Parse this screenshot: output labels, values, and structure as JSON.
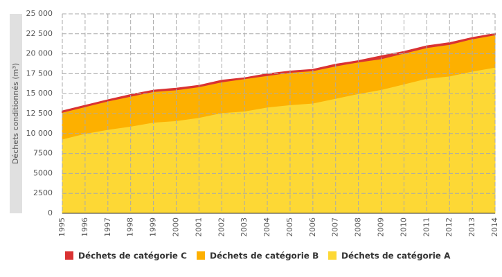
{
  "chart_data": {
    "type": "stacked_area",
    "y_axis_label": "Déchets conditionnés (m³)",
    "categories": [
      "1995",
      "1996",
      "1997",
      "1998",
      "1999",
      "2000",
      "2001",
      "2002",
      "2003",
      "2004",
      "2005",
      "2006",
      "2007",
      "2008",
      "2009",
      "2010",
      "2011",
      "2012",
      "2013",
      "2014"
    ],
    "series": [
      {
        "name": "Déchets de catégorie A",
        "color": "#fdd835",
        "values": [
          9300,
          10000,
          10500,
          10900,
          11400,
          11600,
          12000,
          12600,
          12800,
          13300,
          13600,
          13800,
          14400,
          15000,
          15500,
          16200,
          16900,
          17200,
          17800,
          18300
        ]
      },
      {
        "name": "Déchets de catégorie B",
        "color": "#fdb000",
        "values": [
          3400,
          3400,
          3600,
          3800,
          3900,
          3900,
          3900,
          3900,
          4100,
          4000,
          4100,
          4100,
          4100,
          4000,
          3900,
          3900,
          3900,
          4000,
          4100,
          4100
        ]
      },
      {
        "name": "Déchets de catégorie C",
        "color": "#d93232",
        "values": [
          100,
          100,
          100,
          150,
          100,
          150,
          100,
          150,
          50,
          150,
          100,
          100,
          150,
          100,
          300,
          150,
          150,
          150,
          100,
          100
        ]
      }
    ],
    "ylim": [
      0,
      25000
    ],
    "yticks": [
      0,
      2500,
      5000,
      7500,
      {
        "value": 10000,
        "label": "10 000"
      },
      {
        "value": 12500,
        "label": "12 500"
      },
      {
        "value": 15000,
        "label": "15 000"
      },
      {
        "value": 17500,
        "label": "17 500"
      },
      {
        "value": 20000,
        "label": "20 000"
      },
      {
        "value": 22500,
        "label": "22 500"
      },
      {
        "value": 25000,
        "label": "25 000"
      }
    ],
    "grid": true
  }
}
